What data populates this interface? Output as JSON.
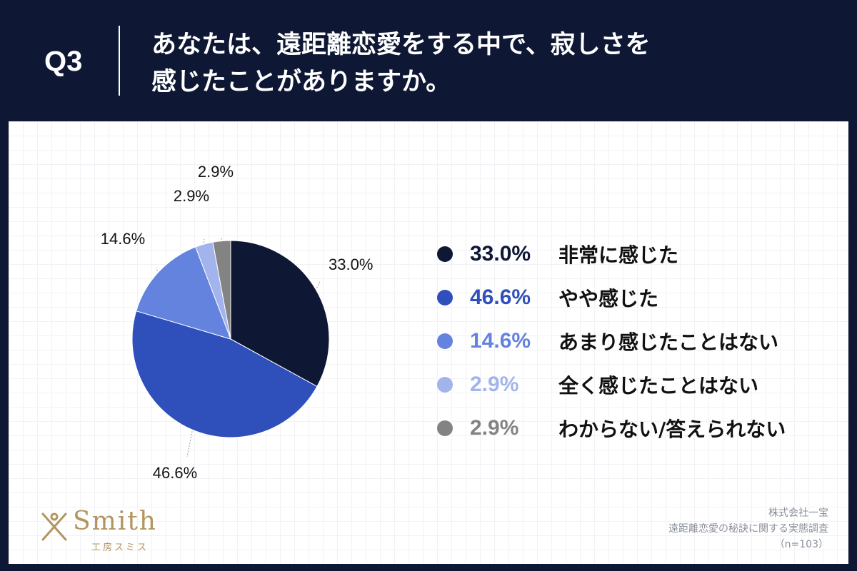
{
  "header": {
    "question_number": "Q3",
    "title_line1": "あなたは、遠距離恋愛をする中で、寂しさを",
    "title_line2": "感じたことがありますか。"
  },
  "chart_data": {
    "type": "pie",
    "title": "あなたは、遠距離恋愛をする中で、寂しさを感じたことがありますか。",
    "slices": [
      {
        "label": "非常に感じた",
        "value": 33.0,
        "display": "33.0%",
        "color": "#0e1733"
      },
      {
        "label": "やや感じた",
        "value": 46.6,
        "display": "46.6%",
        "color": "#2f4fbb"
      },
      {
        "label": "あまり感じたことはない",
        "value": 14.6,
        "display": "14.6%",
        "color": "#6383de"
      },
      {
        "label": "全く感じたことはない",
        "value": 2.9,
        "display": "2.9%",
        "color": "#a3b4ec"
      },
      {
        "label": "わからない/答えられない",
        "value": 2.9,
        "display": "2.9%",
        "color": "#838383"
      }
    ],
    "start": "12 o'clock",
    "direction": "clockwise",
    "legend_position": "right"
  },
  "logo": {
    "name": "Smith",
    "subtitle": "工房スミス"
  },
  "source": {
    "company": "株式会社一宝",
    "survey": "遠距離恋愛の秘訣に関する実態調査",
    "sample": "（n=103）"
  }
}
